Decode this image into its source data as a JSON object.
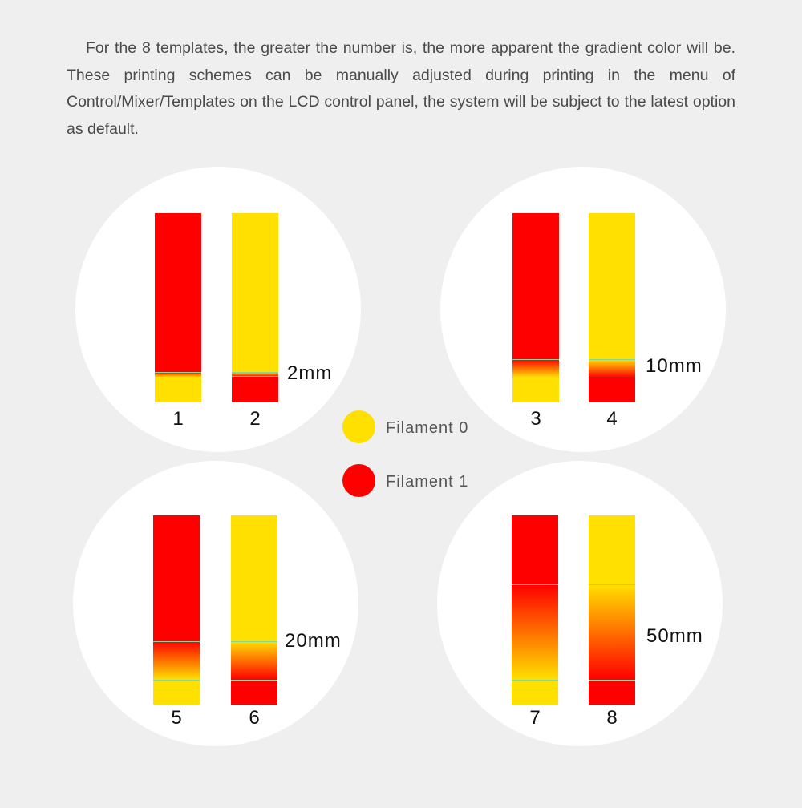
{
  "intro_text": "For the 8 templates, the greater the number is, the more apparent the gradient color will be. These printing schemes can be manually adjusted during printing in the menu of Control/Mixer/Templates  on the LCD control panel, the system will be subject to the latest option as default.",
  "colors": {
    "filament0": "#ffe000",
    "filament1": "#ff0000"
  },
  "legend": [
    {
      "label": "Filament 0",
      "color": "#ffe000"
    },
    {
      "label": "Filament 1",
      "color": "#ff0000"
    }
  ],
  "groups": [
    {
      "distance": "2mm",
      "templates": [
        {
          "number": "1"
        },
        {
          "number": "2"
        }
      ]
    },
    {
      "distance": "10mm",
      "templates": [
        {
          "number": "3"
        },
        {
          "number": "4"
        }
      ]
    },
    {
      "distance": "20mm",
      "templates": [
        {
          "number": "5"
        },
        {
          "number": "6"
        }
      ]
    },
    {
      "distance": "50mm",
      "templates": [
        {
          "number": "7"
        },
        {
          "number": "8"
        }
      ]
    }
  ]
}
